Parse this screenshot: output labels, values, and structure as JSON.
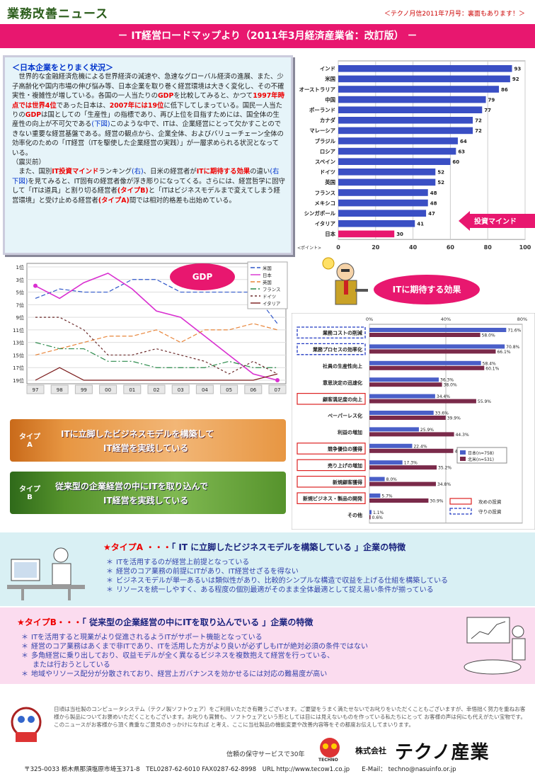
{
  "header": {
    "title": "業務改善ニュース",
    "note": "＜テクノ月信2011年7月号：裏面もあります！＞"
  },
  "banner": {
    "text": "－ IT経営ロードマップより（2011年3月経済産業省：改訂版） －"
  },
  "status": {
    "heading": "＜日本企業をとりまく状況＞",
    "p1a": "　世界的な金融経済危機による世界経済の減速や、急速なグローバル経済の進展、また、少子高齢化や国内市場の伸び悩み等、日本企業を取り巻く経営環境は大きく変化し、その不確実性・複雑性が増している。各国の一人当たりの",
    "p1gdp": "GDP",
    "p1b": "を比較してみると、かつて",
    "p1c": "1997年時点では世界4位",
    "p1d": "であった日本は、",
    "p1e": "2007年には19位",
    "p1f": "に低下してしまっている。国民一人当たりの",
    "p1g": "GDP",
    "p1h": "は国としての「生産性」の指標であり、再び上位を目指すためには、国全体の生産性の向上が不可欠である",
    "p1i": "(下図)",
    "p1j": "このような中で、ITは、企業経営にとって欠かすことのできない重要な経営基盤である。経営の観点から、企業全体、およびバリューチェーン全体の効率化のための「IT経営（ITを駆使した企業経営の実践）」が一層求められる状況となっている。",
    "p2": "（震災前）",
    "p3a": "　また、国別",
    "p3b": "IT投資マインド",
    "p3c": "ランキング",
    "p3d": "(右)",
    "p3e": "、日米の経営者が",
    "p3f": "ITに期待する効果",
    "p3g": "の違い",
    "p3h": "(右下図)",
    "p3i": "を見てみると、IT固有の経営者像が浮き彫りになってくる。さらには、経営哲学に固守して「ITは道具」と割り切る経営者",
    "p3j": "(タイプB)",
    "p3k": "と「ITはビジネスモデルまで変えてしまう経営環境」と受け止める経営者",
    "p3l": "(タイプA)",
    "p3m": "間では相対的格差も出始めている。"
  },
  "cap_label": "投資マインド",
  "gdp_label": "GDP",
  "expect_label": "ITに期待する効果",
  "type_panel": {
    "a_tag": "タイプ\nA",
    "a_text1": "ITに立脚したビジネスモデルを構築して",
    "a_text2": "IT経営を実践している",
    "b_tag": "タイプ\nB",
    "b_text1": "従来型の企業経営の中にITを取り込んで",
    "b_text2": "IT経営を実践している"
  },
  "typeA": {
    "title_prefix": "★タイプA ・・・",
    "title_main": "「 IT に立脚したビジネスモデルを構築している 」",
    "title_suffix": "企業の特徴",
    "items": [
      "ITを活用するのが経営上前提となっている",
      "経営のコア業務の前提にITがあり、IT経営せざるを得ない",
      "ビジネスモデルが単一あるいは類似性があり、比較的シンプルな構造で収益を上げる仕組を構築している",
      "リソースを統一しやすく、ある程度の個別最適がそのまま全体最適として捉え易い条件が揃っている"
    ]
  },
  "typeB": {
    "title_prefix": "★タイプB・・・",
    "title_main": "「 従来型の企業経営の中にITを取り込んでいる 」",
    "title_suffix": "企業の特徴",
    "items": [
      "ITを活用すると現業がより促進されるようITがサポート機能となっている",
      "経営のコア業務はあくまで非ITであり、ITを活用した方がより良いが必ずしもITが絶対必須の条件ではない",
      "多角経営に乗り出しており、収益モデルが全く異なるビジネスを複数抱えて経営を行っている、",
      "または行おうとしている",
      "地域やリソース配分が分散されており、経営上ガバナンスを効かせるには対応の難易度が高い"
    ]
  },
  "footer": {
    "message": "日頃は当社製のコンピュータシステム（テクノ製ソフトウェア）をご利用いただき有難うございます。ご要望をうまく満たせないでお叱りをいただくこともございますが、幸悟拙く努力を重ねお客様から製品についてお褒めいただくこともございます。お叱りも賞賛も、ソフトウェアという形としては目には見えないものを作っている私たちにとって お客様の声は何にも代えがたい宝物です。このニュースがお客様から頂く貴重なご意見のきっかけになれば と考え、ここに当社製品の機能変更や改善内容等をその都度お伝えしてまいります。",
    "tagline": "信頼の保守サービスで30年",
    "company_prefix": "株式会社",
    "company": "テクノ産業",
    "logo_text": "TECHNO",
    "address": "〒325-0033 栃木県那須塩原市埼玉371-8　TEL0287-62-6010 FAX0287-62-8998　URL  http://www.tecow1.co.jp　　E-Mail： techno@nasuinfo.or.jp"
  },
  "chart_data": [
    {
      "type": "bar",
      "categories": [
        "インド",
        "米国",
        "オーストラリア",
        "中国",
        "ポーランド",
        "カナダ",
        "マレーシア",
        "ブラジル",
        "ロシア",
        "スペイン",
        "ドイツ",
        "英国",
        "フランス",
        "メキシコ",
        "シンガポール",
        "イタリア",
        "日本"
      ],
      "values": [
        93,
        92,
        86,
        79,
        77,
        72,
        72,
        64,
        63,
        60,
        52,
        52,
        48,
        48,
        47,
        41,
        30
      ],
      "xlim": [
        0,
        100
      ],
      "xticks": [
        "0",
        "20",
        "40",
        "60",
        "80",
        "100"
      ],
      "xlabel": "<ポイント>",
      "highlight": "日本"
    },
    {
      "type": "line",
      "x": [
        "97",
        "98",
        "99",
        "00",
        "01",
        "02",
        "03",
        "04",
        "05",
        "06",
        "07"
      ],
      "ylim": [
        1,
        19
      ],
      "yticks": [
        "1位",
        "3位",
        "5位",
        "7位",
        "9位",
        "11位",
        "13位",
        "15位",
        "17位",
        "19位"
      ],
      "series": [
        {
          "name": "米国",
          "values": [
            6,
            4.5,
            5,
            5,
            3,
            3,
            5,
            5,
            5,
            5,
            10
          ],
          "color": "#2f56c9",
          "dash": "6,3"
        },
        {
          "name": "日本",
          "values": [
            4,
            6,
            3.5,
            2,
            4.5,
            8,
            9,
            12,
            15,
            18,
            19
          ],
          "color": "#d92fd0",
          "dash": ""
        },
        {
          "name": "英国",
          "values": [
            15,
            14,
            13,
            12,
            12,
            11,
            13,
            11,
            11,
            10,
            11
          ],
          "color": "#e8853a",
          "dash": "6,3"
        },
        {
          "name": "フランス",
          "values": [
            13,
            14,
            14,
            16,
            16,
            17,
            17,
            17,
            16,
            17,
            17
          ],
          "color": "#2a8a4a",
          "dash": "8,3,2,3"
        },
        {
          "name": "ドイツ",
          "values": [
            9,
            9,
            11,
            15,
            15,
            14,
            15,
            16,
            18,
            16,
            18
          ],
          "color": "#6b2a2a",
          "dash": "3,3"
        },
        {
          "name": "イタリア",
          "values": [
            19,
            17,
            19,
            19,
            19,
            19,
            19,
            19,
            19,
            19,
            18
          ],
          "color": "#7a1a1a",
          "dash": ""
        }
      ]
    },
    {
      "type": "bar",
      "categories": [
        "業務コストの削減",
        "業務プロセスの効率化",
        "社員の生産性向上",
        "意思決定の迅速化",
        "顧客満足度の向上",
        "ペーパーレス化",
        "利益の増加",
        "競争優位の獲得",
        "売り上げの増加",
        "新規顧客獲得",
        "新規ビジネス・製品の開発",
        "その他"
      ],
      "series": [
        {
          "name": "日本(n=758)",
          "values": [
            71.6,
            70.8,
            58.4,
            36.3,
            34.4,
            33.6,
            25.9,
            22.4,
            17.3,
            8.0,
            5.7,
            1.1
          ],
          "color": "#4a5fc8"
        },
        {
          "name": "北米(n=531)",
          "values": [
            58.0,
            66.1,
            60.1,
            38.0,
            55.9,
            39.9,
            44.3,
            43.9,
            35.2,
            34.8,
            30.9,
            0.6
          ],
          "color": "#7a2a4a"
        }
      ],
      "xlim": [
        0,
        80
      ],
      "xticks": [
        "0%",
        "40%",
        "80%"
      ],
      "attack": [
        "顧客満足度の向上",
        "競争優位の獲得",
        "売り上げの増加",
        "新規顧客獲得",
        "新規ビジネス・製品の開発"
      ],
      "defense": [
        "業務コストの削減",
        "業務プロセスの効率化"
      ],
      "legend_attack": "攻めの投資",
      "legend_defense": "守りの投資"
    }
  ]
}
